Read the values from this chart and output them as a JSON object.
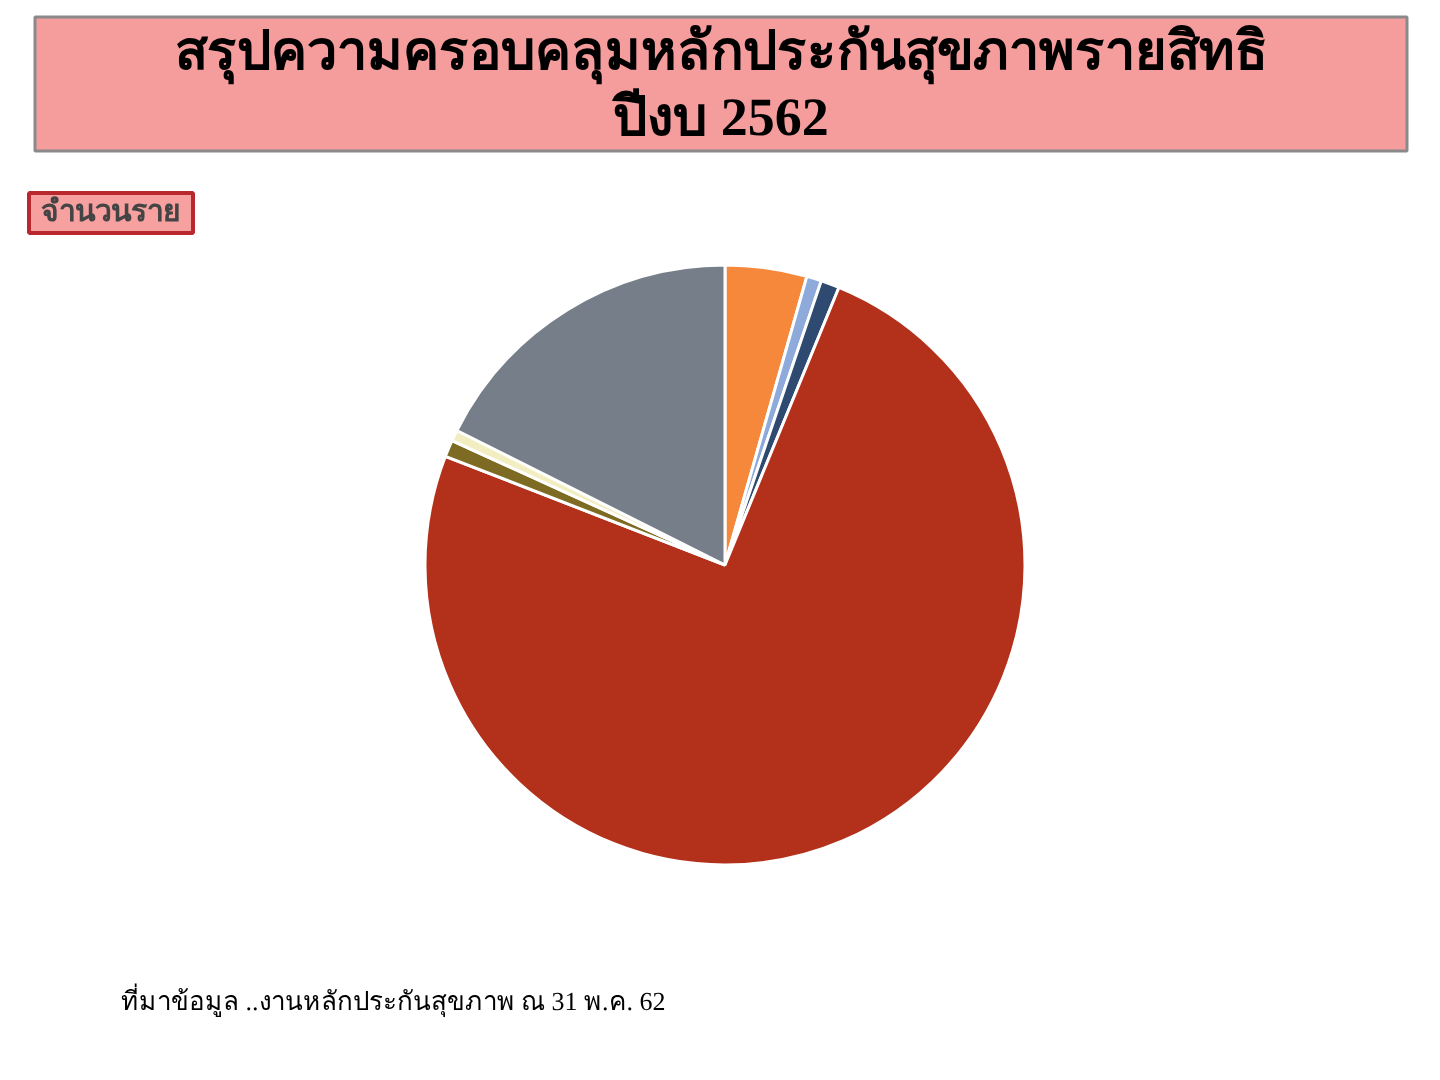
{
  "chart_data": {
    "type": "pie",
    "title": "สรุปความครอบคลุมหลักประกันสุขภาพรายสิทธิ",
    "subtitle": "ปีงบ 2562",
    "categories": [
      null,
      null,
      null,
      null,
      null,
      null,
      null
    ],
    "values": [
      4.4,
      0.8,
      1.0,
      74.7,
      0.9,
      0.6,
      17.6
    ],
    "colors": [
      "#f5883a",
      "#8eaadb",
      "#2e4a70",
      "#b3301b",
      "#7d6b23",
      "#f2eec2",
      "#767f89"
    ],
    "annotations": [
      "จำนวนราย",
      "ที่มาข้อมูล ..งานหลักประกันสุขภาพ ณ 31 พ.ค. 62"
    ]
  }
}
